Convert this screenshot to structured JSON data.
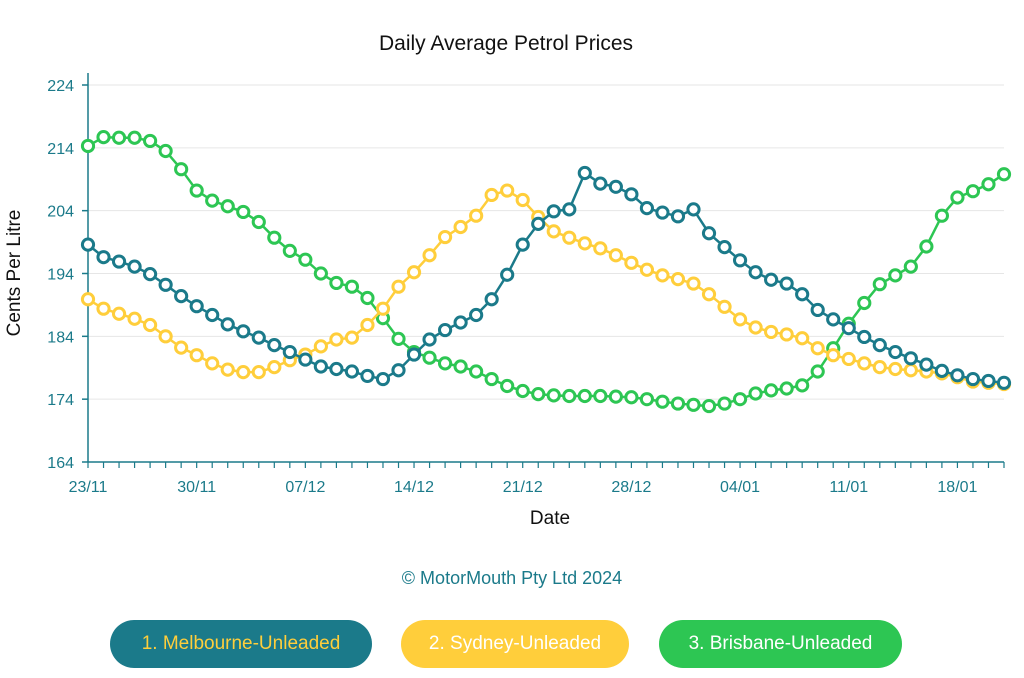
{
  "chart_data": {
    "type": "line",
    "title": "Daily Average Petrol Prices",
    "xlabel": "Date",
    "ylabel": "Cents Per Litre",
    "ylim": [
      164,
      224
    ],
    "yticks": [
      164,
      174,
      184,
      194,
      204,
      214,
      224
    ],
    "xticks": [
      {
        "label": "23/11",
        "day": 0
      },
      {
        "label": "30/11",
        "day": 7
      },
      {
        "label": "07/12",
        "day": 14
      },
      {
        "label": "14/12",
        "day": 21
      },
      {
        "label": "21/12",
        "day": 28
      },
      {
        "label": "28/12",
        "day": 35
      },
      {
        "label": "04/01",
        "day": 42
      },
      {
        "label": "11/01",
        "day": 49
      },
      {
        "label": "18/01",
        "day": 56
      }
    ],
    "x_range": [
      0,
      59
    ],
    "grid": "horizontal",
    "legend_position": "bottom",
    "series": [
      {
        "name": "1. Melbourne-Unleaded",
        "color": "#1b7a8a",
        "values": [
          198.6,
          196.6,
          195.9,
          195.1,
          193.9,
          192.2,
          190.4,
          188.8,
          187.4,
          185.9,
          184.8,
          183.8,
          182.6,
          181.5,
          180.3,
          179.2,
          178.8,
          178.4,
          177.7,
          177.2,
          178.6,
          181.1,
          183.5,
          185.0,
          186.2,
          187.4,
          189.9,
          193.8,
          198.6,
          201.9,
          203.9,
          204.2,
          210.0,
          208.3,
          207.8,
          206.6,
          204.4,
          203.7,
          203.1,
          204.2,
          200.4,
          198.2,
          196.1,
          194.2,
          193.0,
          192.4,
          190.7,
          188.2,
          186.7,
          185.3,
          183.9,
          182.6,
          181.5,
          180.5,
          179.5,
          178.5,
          177.8,
          177.2,
          176.9,
          176.6
        ]
      },
      {
        "name": "2. Sydney-Unleaded",
        "color": "#ffce3b",
        "values": [
          189.9,
          188.4,
          187.6,
          186.8,
          185.8,
          184.0,
          182.2,
          181.0,
          179.7,
          178.7,
          178.3,
          178.3,
          179.1,
          180.2,
          181.1,
          182.4,
          183.5,
          183.8,
          185.8,
          188.4,
          191.9,
          194.2,
          196.9,
          199.8,
          201.4,
          203.2,
          206.5,
          207.2,
          205.7,
          203.0,
          200.7,
          199.7,
          198.8,
          198.0,
          196.9,
          195.7,
          194.6,
          193.7,
          193.1,
          192.4,
          190.7,
          188.7,
          186.7,
          185.4,
          184.7,
          184.3,
          183.7,
          182.1,
          181.0,
          180.4,
          179.7,
          179.1,
          178.8,
          178.6,
          178.4,
          178.1,
          177.5,
          176.8,
          176.6,
          176.4
        ]
      },
      {
        "name": "3. Brisbane-Unleaded",
        "color": "#2dc653",
        "values": [
          214.3,
          215.7,
          215.6,
          215.6,
          215.1,
          213.5,
          210.6,
          207.2,
          205.6,
          204.7,
          203.8,
          202.2,
          199.7,
          197.6,
          196.2,
          194.0,
          192.5,
          191.9,
          190.1,
          186.9,
          183.6,
          181.5,
          180.6,
          179.7,
          179.2,
          178.4,
          177.2,
          176.1,
          175.3,
          174.8,
          174.6,
          174.5,
          174.5,
          174.5,
          174.4,
          174.3,
          174.0,
          173.6,
          173.3,
          173.1,
          172.9,
          173.3,
          174.0,
          174.9,
          175.4,
          175.7,
          176.2,
          178.4,
          182.1,
          186.0,
          189.3,
          192.3,
          193.7,
          195.1,
          198.3,
          203.2,
          206.1,
          207.1,
          208.2,
          209.8
        ]
      }
    ]
  },
  "footer": {
    "copyright": "© MotorMouth Pty Ltd 2024"
  },
  "legend": [
    {
      "label": "1. Melbourne-Unleaded",
      "bg": "#1b7a8a",
      "fg": "#ffce3b"
    },
    {
      "label": "2. Sydney-Unleaded",
      "bg": "#ffce3b",
      "fg": "#ffffff"
    },
    {
      "label": "3. Brisbane-Unleaded",
      "bg": "#2dc653",
      "fg": "#ffffff"
    }
  ],
  "colors": {
    "axis": "#1b7a8a",
    "tick_text": "#1b7a8a",
    "title_text": "#111111",
    "copyright_text": "#1b7a8a"
  }
}
